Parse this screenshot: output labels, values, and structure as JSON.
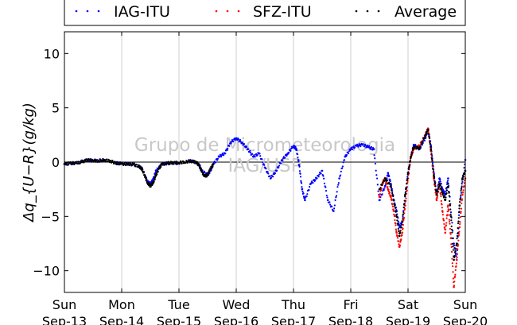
{
  "chart_data": {
    "type": "scatter",
    "ylim": [
      -12,
      12
    ],
    "xlim": [
      0,
      7
    ],
    "yticks": [
      -10,
      -5,
      0,
      5,
      10
    ],
    "ytick_labels": [
      "−10",
      "−5",
      "0",
      "5",
      "10"
    ],
    "xticks": [
      {
        "x": 0,
        "day": "Sun",
        "date": "Sep-13"
      },
      {
        "x": 1,
        "day": "Mon",
        "date": "Sep-14"
      },
      {
        "x": 2,
        "day": "Tue",
        "date": "Sep-15"
      },
      {
        "x": 3,
        "day": "Wed",
        "date": "Sep-16"
      },
      {
        "x": 4,
        "day": "Thu",
        "date": "Sep-17"
      },
      {
        "x": 5,
        "day": "Fri",
        "date": "Sep-18"
      },
      {
        "x": 6,
        "day": "Sat",
        "date": "Sep-19"
      },
      {
        "x": 7,
        "day": "Sun",
        "date": "Sep-20"
      }
    ],
    "ylabel": "Δq_{U−R}(g/kg)",
    "grid": "vertical",
    "legend_position": "top",
    "watermark": [
      "Grupo de Micrometeorologia",
      "IAG/USP"
    ],
    "series": [
      {
        "name": "IAG-ITU",
        "color": "#0000ff",
        "x": [
          0.0,
          0.2,
          0.4,
          0.5,
          0.7,
          0.9,
          1.0,
          1.2,
          1.35,
          1.45,
          1.5,
          1.55,
          1.6,
          1.7,
          1.8,
          2.0,
          2.2,
          2.35,
          2.4,
          2.5,
          2.55,
          2.6,
          2.7,
          2.8,
          2.9,
          3.0,
          3.1,
          3.2,
          3.3,
          3.4,
          3.5,
          3.6,
          3.7,
          3.8,
          3.9,
          4.0,
          4.05,
          4.1,
          4.15,
          4.2,
          4.3,
          4.4,
          4.5,
          4.6,
          4.7,
          4.8,
          4.9,
          5.0,
          5.1,
          5.2,
          5.3,
          5.4,
          5.5,
          5.6,
          5.65,
          5.7,
          5.75,
          5.8,
          5.85,
          5.9,
          6.0,
          6.05,
          6.1,
          6.2,
          6.3,
          6.35,
          6.4,
          6.45,
          6.5,
          6.55,
          6.6,
          6.65,
          6.7,
          6.8,
          6.85,
          6.9,
          7.0
        ],
        "y": [
          -0.2,
          -0.1,
          0.2,
          0.1,
          0.2,
          -0.1,
          -0.1,
          -0.2,
          -0.5,
          -1.8,
          -2.0,
          -1.6,
          -0.8,
          -0.2,
          -0.1,
          -0.1,
          0.2,
          -0.2,
          -0.8,
          -1.2,
          -0.8,
          -0.2,
          0.5,
          0.8,
          1.8,
          2.2,
          1.8,
          1.2,
          0.5,
          0.8,
          -0.5,
          -1.5,
          -0.8,
          0.2,
          0.8,
          1.5,
          1.2,
          -0.3,
          -2.5,
          -3.5,
          -2.0,
          -1.5,
          -0.8,
          -3.5,
          -4.5,
          -1.5,
          0.5,
          1.2,
          1.5,
          1.6,
          1.4,
          1.2,
          -3.5,
          -2.2,
          -1.0,
          -2.0,
          -3.5,
          -4.5,
          -6.0,
          -5.5,
          -1.0,
          0.5,
          1.6,
          1.2,
          2.2,
          3.0,
          1.5,
          -1.0,
          -3.0,
          -1.5,
          -2.5,
          -3.0,
          -1.5,
          -7.5,
          -9.0,
          -4.0,
          0.2
        ]
      },
      {
        "name": "SFZ-ITU",
        "color": "#ff0000",
        "x": [
          5.5,
          5.55,
          5.6,
          5.65,
          5.7,
          5.75,
          5.8,
          5.85,
          5.9,
          5.95,
          6.0,
          6.05,
          6.1,
          6.2,
          6.3,
          6.35,
          6.4,
          6.45,
          6.5,
          6.55,
          6.6,
          6.65,
          6.7,
          6.75,
          6.8,
          6.85,
          6.9,
          6.95,
          7.0
        ],
        "y": [
          -3.2,
          -2.0,
          -1.5,
          -2.5,
          -3.2,
          -4.5,
          -6.5,
          -7.8,
          -6.5,
          -4.0,
          -1.5,
          0.5,
          1.2,
          1.5,
          2.5,
          3.1,
          1.0,
          -1.5,
          -3.5,
          -2.0,
          -4.5,
          -6.5,
          -4.0,
          -7.0,
          -11.5,
          -9.0,
          -6.0,
          -3.0,
          -1.5
        ]
      },
      {
        "name": "Average",
        "color": "#000000",
        "x": [
          0.0,
          0.1,
          0.2,
          0.3,
          0.4,
          0.5,
          0.6,
          0.7,
          0.8,
          0.9,
          1.0,
          1.1,
          1.2,
          1.3,
          1.35,
          1.4,
          1.45,
          1.5,
          1.55,
          1.6,
          1.65,
          1.7,
          1.8,
          1.9,
          2.0,
          2.1,
          2.2,
          2.3,
          2.35,
          2.4,
          2.45,
          2.5,
          2.55,
          2.6,
          5.5,
          5.6,
          5.7,
          5.75,
          5.8,
          5.85,
          5.9,
          5.95,
          6.0,
          6.05,
          6.1,
          6.2,
          6.3,
          6.35,
          6.4,
          6.45,
          6.5,
          6.55,
          6.6,
          6.65,
          6.7,
          6.75,
          6.8,
          6.85,
          6.9,
          6.95,
          7.0
        ],
        "y": [
          -0.15,
          -0.1,
          -0.1,
          0.0,
          0.2,
          0.15,
          0.1,
          0.2,
          0.1,
          -0.1,
          -0.15,
          -0.2,
          -0.2,
          -0.4,
          -0.6,
          -1.2,
          -1.9,
          -2.2,
          -1.9,
          -1.2,
          -0.6,
          -0.2,
          -0.1,
          -0.05,
          -0.05,
          0.0,
          0.1,
          0.0,
          -0.3,
          -0.9,
          -1.3,
          -1.2,
          -0.6,
          -0.2,
          -2.5,
          -1.5,
          -2.2,
          -3.5,
          -5.0,
          -6.8,
          -5.5,
          -3.0,
          -1.0,
          0.5,
          1.4,
          1.3,
          2.4,
          3.0,
          1.2,
          -1.2,
          -3.0,
          -2.0,
          -2.8,
          -3.5,
          -2.0,
          -5.0,
          -9.0,
          -7.5,
          -4.0,
          -1.5,
          -0.8
        ]
      }
    ]
  }
}
